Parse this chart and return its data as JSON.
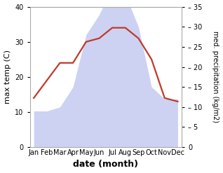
{
  "months": [
    "Jan",
    "Feb",
    "Mar",
    "Apr",
    "May",
    "Jun",
    "Jul",
    "Aug",
    "Sep",
    "Oct",
    "Nov",
    "Dec"
  ],
  "temperature": [
    14,
    19,
    24,
    24,
    30,
    31,
    34,
    34,
    31,
    25,
    14,
    13
  ],
  "precipitation": [
    9,
    9,
    10,
    15,
    28,
    33,
    40,
    38,
    30,
    15,
    12,
    12
  ],
  "temp_color": "#c0392b",
  "precip_fill_color": "#c5caf0",
  "ylim_left": [
    0,
    40
  ],
  "ylim_right": [
    0,
    35
  ],
  "yticks_left": [
    0,
    10,
    20,
    30,
    40
  ],
  "yticks_right": [
    0,
    5,
    10,
    15,
    20,
    25,
    30,
    35
  ],
  "xlabel": "date (month)",
  "ylabel_left": "max temp (C)",
  "ylabel_right": "med. precipitation (kg/m2)",
  "background_color": "#ffffff",
  "temp_linewidth": 1.6,
  "figsize": [
    3.18,
    2.47
  ],
  "dpi": 100
}
